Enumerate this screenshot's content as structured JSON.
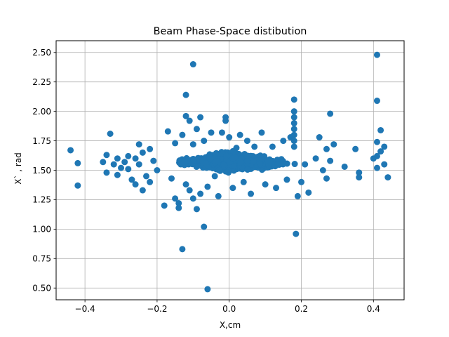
{
  "chart_data": {
    "type": "scatter",
    "title": "Beam Phase-Space distibution",
    "xlabel": "X,cm",
    "ylabel": "X` , rad",
    "xlim": [
      -0.48,
      0.485
    ],
    "ylim": [
      0.4,
      2.6
    ],
    "xticks": [
      -0.4,
      -0.2,
      0.0,
      0.2,
      0.4
    ],
    "xtick_labels": [
      "−0.4",
      "−0.2",
      "0.0",
      "0.2",
      "0.4"
    ],
    "yticks": [
      0.5,
      0.75,
      1.0,
      1.25,
      1.5,
      1.75,
      2.0,
      2.25,
      2.5
    ],
    "ytick_labels": [
      "0.50",
      "0.75",
      "1.00",
      "1.25",
      "1.50",
      "1.75",
      "2.00",
      "2.25",
      "2.50"
    ],
    "grid": true,
    "marker_color": "#1f77b4",
    "core": {
      "x_range": [
        -0.2,
        0.22
      ],
      "y_range": [
        1.45,
        1.7
      ],
      "center_y": 1.57
    },
    "points": [
      [
        -0.44,
        1.67
      ],
      [
        -0.42,
        1.56
      ],
      [
        -0.42,
        1.37
      ],
      [
        -0.35,
        1.57
      ],
      [
        -0.34,
        1.48
      ],
      [
        -0.34,
        1.63
      ],
      [
        -0.33,
        1.81
      ],
      [
        -0.32,
        1.55
      ],
      [
        -0.31,
        1.6
      ],
      [
        -0.31,
        1.46
      ],
      [
        -0.3,
        1.52
      ],
      [
        -0.29,
        1.57
      ],
      [
        -0.28,
        1.62
      ],
      [
        -0.28,
        1.51
      ],
      [
        -0.27,
        1.42
      ],
      [
        -0.26,
        1.6
      ],
      [
        -0.26,
        1.38
      ],
      [
        -0.25,
        1.55
      ],
      [
        -0.25,
        1.72
      ],
      [
        -0.24,
        1.65
      ],
      [
        -0.24,
        1.33
      ],
      [
        -0.23,
        1.45
      ],
      [
        -0.22,
        1.68
      ],
      [
        -0.22,
        1.4
      ],
      [
        -0.21,
        1.58
      ],
      [
        -0.2,
        1.5
      ],
      [
        -0.18,
        1.2
      ],
      [
        -0.17,
        1.83
      ],
      [
        -0.16,
        1.43
      ],
      [
        -0.15,
        1.73
      ],
      [
        -0.15,
        1.26
      ],
      [
        -0.14,
        1.18
      ],
      [
        -0.14,
        1.22
      ],
      [
        -0.13,
        0.83
      ],
      [
        -0.13,
        1.8
      ],
      [
        -0.12,
        1.96
      ],
      [
        -0.12,
        2.14
      ],
      [
        -0.12,
        1.38
      ],
      [
        -0.11,
        1.92
      ],
      [
        -0.11,
        1.33
      ],
      [
        -0.1,
        2.4
      ],
      [
        -0.1,
        1.72
      ],
      [
        -0.1,
        1.26
      ],
      [
        -0.09,
        1.85
      ],
      [
        -0.09,
        1.17
      ],
      [
        -0.08,
        1.95
      ],
      [
        -0.08,
        1.3
      ],
      [
        -0.07,
        1.02
      ],
      [
        -0.07,
        1.75
      ],
      [
        -0.06,
        0.49
      ],
      [
        -0.06,
        1.36
      ],
      [
        -0.05,
        1.82
      ],
      [
        -0.04,
        1.45
      ],
      [
        -0.03,
        1.28
      ],
      [
        -0.02,
        1.82
      ],
      [
        -0.01,
        1.95
      ],
      [
        -0.01,
        1.92
      ],
      [
        0.0,
        1.78
      ],
      [
        0.01,
        1.35
      ],
      [
        0.02,
        1.69
      ],
      [
        0.03,
        1.8
      ],
      [
        0.04,
        1.4
      ],
      [
        0.05,
        1.75
      ],
      [
        0.06,
        1.3
      ],
      [
        0.07,
        1.7
      ],
      [
        0.09,
        1.82
      ],
      [
        0.1,
        1.38
      ],
      [
        0.12,
        1.7
      ],
      [
        0.13,
        1.35
      ],
      [
        0.15,
        1.75
      ],
      [
        0.16,
        1.42
      ],
      [
        0.17,
        1.78
      ],
      [
        0.18,
        1.7
      ],
      [
        0.18,
        1.75
      ],
      [
        0.18,
        1.8
      ],
      [
        0.18,
        1.85
      ],
      [
        0.18,
        1.9
      ],
      [
        0.18,
        1.95
      ],
      [
        0.18,
        2.0
      ],
      [
        0.18,
        2.1
      ],
      [
        0.185,
        0.96
      ],
      [
        0.19,
        1.28
      ],
      [
        0.2,
        1.4
      ],
      [
        0.21,
        1.55
      ],
      [
        0.22,
        1.31
      ],
      [
        0.24,
        1.6
      ],
      [
        0.25,
        1.78
      ],
      [
        0.26,
        1.5
      ],
      [
        0.27,
        1.43
      ],
      [
        0.27,
        1.68
      ],
      [
        0.28,
        1.58
      ],
      [
        0.28,
        1.98
      ],
      [
        0.29,
        1.72
      ],
      [
        0.32,
        1.53
      ],
      [
        0.35,
        1.68
      ],
      [
        0.36,
        1.48
      ],
      [
        0.36,
        1.44
      ],
      [
        0.4,
        1.6
      ],
      [
        0.41,
        2.48
      ],
      [
        0.41,
        2.09
      ],
      [
        0.41,
        1.74
      ],
      [
        0.41,
        1.52
      ],
      [
        0.41,
        1.62
      ],
      [
        0.42,
        1.84
      ],
      [
        0.42,
        1.66
      ],
      [
        0.43,
        1.7
      ],
      [
        0.43,
        1.55
      ],
      [
        0.44,
        1.44
      ]
    ]
  }
}
